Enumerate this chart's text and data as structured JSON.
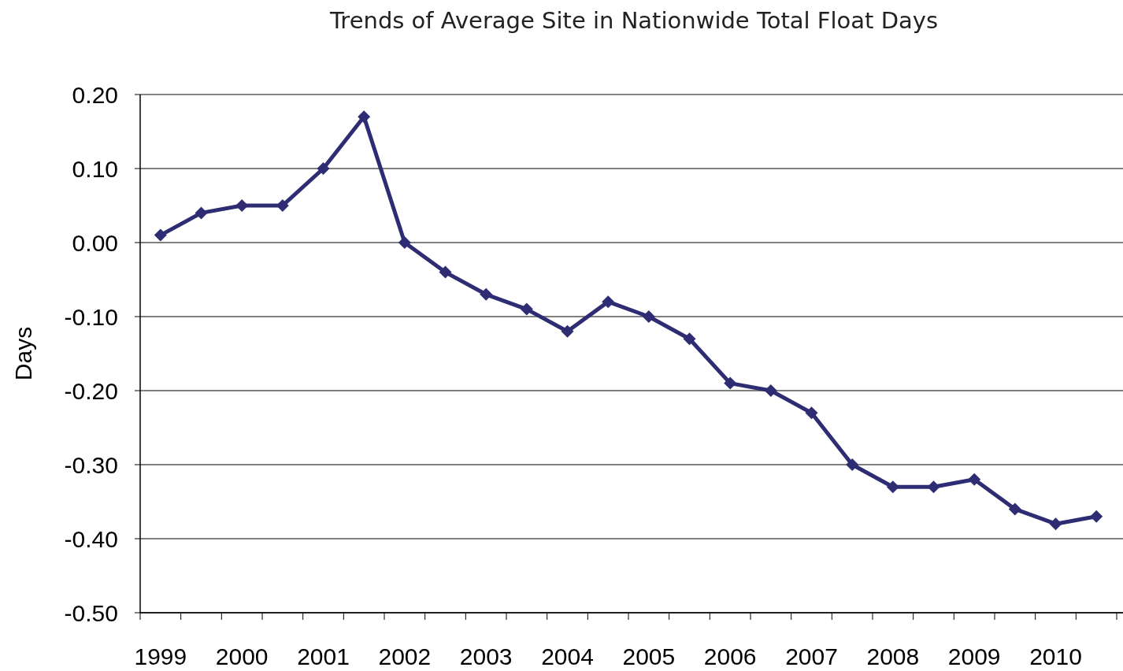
{
  "chart_data": {
    "type": "line",
    "title": "Trends of Average Site in Nationwide Total Float Days",
    "ylabel": "Days",
    "categories": [
      "1999",
      null,
      "2000",
      null,
      "2001",
      null,
      "2002",
      null,
      "2003",
      null,
      "2004",
      null,
      "2005",
      null,
      "2006",
      null,
      "2007",
      null,
      "2008",
      null,
      "2009",
      null,
      "2010",
      null
    ],
    "series": [
      {
        "color": "#2e2d73",
        "values": [
          0.01,
          0.04,
          0.05,
          0.05,
          0.1,
          0.17,
          0.0,
          -0.04,
          -0.07,
          -0.09,
          -0.12,
          -0.08,
          -0.1,
          -0.13,
          -0.19,
          -0.2,
          -0.23,
          -0.3,
          -0.33,
          -0.33,
          -0.32,
          -0.36,
          -0.38,
          -0.37
        ]
      }
    ],
    "ylim": [
      -0.5,
      0.2
    ],
    "yticks": [
      {
        "value": 0.2,
        "label": "0.20"
      },
      {
        "value": 0.1,
        "label": "0.10"
      },
      {
        "value": 0,
        "label": "0.00"
      },
      {
        "value": -0.1,
        "label": "-0.10"
      },
      {
        "value": -0.2,
        "label": "-0.20"
      },
      {
        "value": -0.3,
        "label": "-0.30"
      },
      {
        "value": -0.4,
        "label": "-0.40"
      },
      {
        "value": -0.5,
        "label": "-0.50"
      }
    ],
    "grid": "y",
    "marker": "diamond",
    "line_style": "solid"
  }
}
